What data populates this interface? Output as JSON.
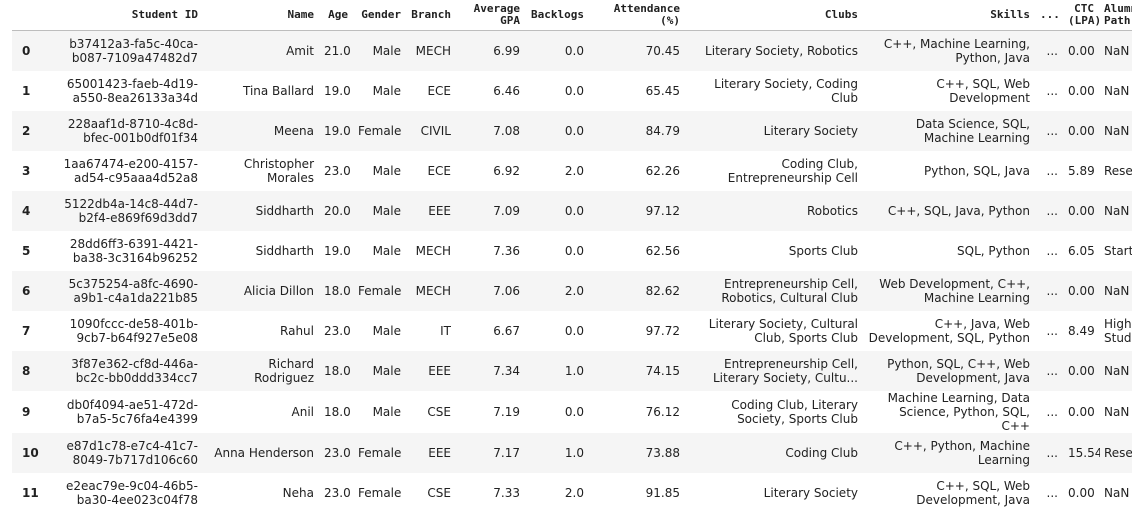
{
  "table": {
    "columns": [
      "",
      "Student ID",
      "Name",
      "Age",
      "Gender",
      "Branch",
      "Average GPA",
      "Backlogs",
      "Attendance (%)",
      "Clubs",
      "Skills",
      "...",
      "CTC (LPA)",
      "Alumni Path"
    ],
    "header_lines": [
      [
        ""
      ],
      [
        "Student ID"
      ],
      [
        "Name"
      ],
      [
        "Age"
      ],
      [
        "Gender"
      ],
      [
        "Branch"
      ],
      [
        "Average",
        "GPA"
      ],
      [
        "Backlogs"
      ],
      [
        "Attendance",
        "(%)"
      ],
      [
        "Clubs"
      ],
      [
        "Skills"
      ],
      [
        "..."
      ],
      [
        "CTC",
        "(LPA)"
      ],
      [
        "Alumni",
        "Path"
      ]
    ],
    "rows": [
      [
        "0",
        "b37412a3-fa5c-40ca-b087-7109a47482d7",
        "Amit",
        "21.0",
        "Male",
        "MECH",
        "6.99",
        "0.0",
        "70.45",
        "Literary Society, Robotics",
        "C++, Machine Learning, Python, Java",
        "...",
        "0.00",
        "NaN"
      ],
      [
        "1",
        "65001423-faeb-4d19-a550-8ea26133a34d",
        "Tina Ballard",
        "19.0",
        "Male",
        "ECE",
        "6.46",
        "0.0",
        "65.45",
        "Literary Society, Coding Club",
        "C++, SQL, Web Development",
        "...",
        "0.00",
        "NaN"
      ],
      [
        "2",
        "228aaf1d-8710-4c8d-bfec-001b0df01f34",
        "Meena",
        "19.0",
        "Female",
        "CIVIL",
        "7.08",
        "0.0",
        "84.79",
        "Literary Society",
        "Data Science, SQL, Machine Learning",
        "...",
        "0.00",
        "NaN"
      ],
      [
        "3",
        "1aa67474-e200-4157-ad54-c95aaa4d52a8",
        "Christopher Morales",
        "23.0",
        "Male",
        "ECE",
        "6.92",
        "2.0",
        "62.26",
        "Coding Club, Entrepreneurship Cell",
        "Python, SQL, Java",
        "...",
        "5.89",
        "Research"
      ],
      [
        "4",
        "5122db4a-14c8-44d7-b2f4-e869f69d3dd7",
        "Siddharth",
        "20.0",
        "Male",
        "EEE",
        "7.09",
        "0.0",
        "97.12",
        "Robotics",
        "C++, SQL, Java, Python",
        "...",
        "0.00",
        "NaN"
      ],
      [
        "5",
        "28dd6ff3-6391-4421-ba38-3c3164b96252",
        "Siddharth",
        "19.0",
        "Male",
        "MECH",
        "7.36",
        "0.0",
        "62.56",
        "Sports Club",
        "SQL, Python",
        "...",
        "6.05",
        "Startup"
      ],
      [
        "6",
        "5c375254-a8fc-4690-a9b1-c4a1da221b85",
        "Alicia Dillon",
        "18.0",
        "Female",
        "MECH",
        "7.06",
        "2.0",
        "82.62",
        "Entrepreneurship Cell, Robotics, Cultural Club",
        "Web Development, C++, Machine Learning",
        "...",
        "0.00",
        "NaN"
      ],
      [
        "7",
        "1090fccc-de58-401b-9cb7-b64f927e5e08",
        "Rahul",
        "23.0",
        "Male",
        "IT",
        "6.67",
        "0.0",
        "97.72",
        "Literary Society, Cultural Club, Sports Club",
        "C++, Java, Web Development, SQL, Python",
        "...",
        "8.49",
        "Higher Studies"
      ],
      [
        "8",
        "3f87e362-cf8d-446a-bc2c-bb0ddd334cc7",
        "Richard Rodriguez",
        "18.0",
        "Male",
        "EEE",
        "7.34",
        "1.0",
        "74.15",
        "Entrepreneurship Cell, Literary Society, Cultu...",
        "Python, SQL, C++, Web Development, Java",
        "...",
        "0.00",
        "NaN"
      ],
      [
        "9",
        "db0f4094-ae51-472d-b7a5-5c76fa4e4399",
        "Anil",
        "18.0",
        "Male",
        "CSE",
        "7.19",
        "0.0",
        "76.12",
        "Coding Club, Literary Society, Sports Club",
        "Machine Learning, Data Science, Python, SQL, C++",
        "...",
        "0.00",
        "NaN"
      ],
      [
        "10",
        "e87d1c78-e7c4-41c7-8049-7b717d106c60",
        "Anna Henderson",
        "23.0",
        "Female",
        "EEE",
        "7.17",
        "1.0",
        "73.88",
        "Coding Club",
        "C++, Python, Machine Learning",
        "...",
        "15.54",
        "Research"
      ],
      [
        "11",
        "e2eac79e-9c04-46b5-ba30-4ee023c04f78",
        "Neha",
        "23.0",
        "Female",
        "CSE",
        "7.33",
        "2.0",
        "91.85",
        "Literary Society",
        "C++, SQL, Web Development, Java",
        "...",
        "0.00",
        "NaN"
      ]
    ]
  }
}
